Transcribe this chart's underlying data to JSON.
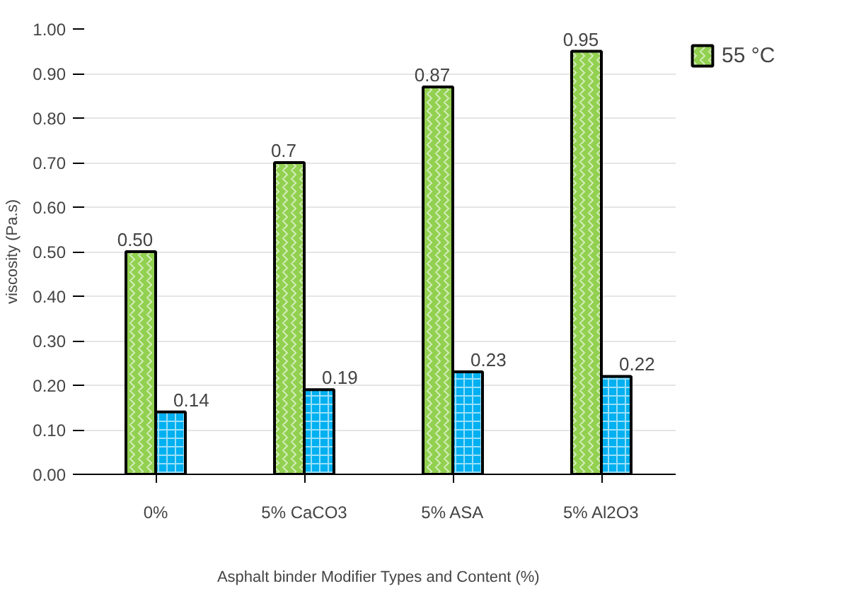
{
  "chart_data": {
    "type": "bar",
    "xlabel": "Asphalt binder Modifier Types and Content (%)",
    "ylabel": "viscosity (Pa.s)",
    "categories": [
      "0%",
      "5% CaCO3",
      "5% ASA",
      "5% Al2O3"
    ],
    "series": [
      {
        "name": "55 °C",
        "color": "#92d050",
        "values": [
          0.5,
          0.7,
          0.87,
          0.95
        ],
        "value_labels": [
          "0.50",
          "0.7",
          "0.87",
          "0.95"
        ]
      },
      {
        "color": "#00b0f0",
        "values": [
          0.14,
          0.19,
          0.23,
          0.22
        ],
        "value_labels": [
          "0.14",
          "0.19",
          "0.23",
          "0.22"
        ]
      }
    ],
    "ylim": [
      0,
      1
    ],
    "yticks": [
      {
        "value": 0,
        "label": "0.00"
      },
      {
        "value": 0.1,
        "label": "0.10"
      },
      {
        "value": 0.2,
        "label": "0.20"
      },
      {
        "value": 0.3,
        "label": "0.30"
      },
      {
        "value": 0.4,
        "label": "0.40"
      },
      {
        "value": 0.5,
        "label": "0.50"
      },
      {
        "value": 0.6,
        "label": "0.60"
      },
      {
        "value": 0.7,
        "label": "0.70"
      },
      {
        "value": 0.8,
        "label": "0.80"
      },
      {
        "value": 0.9,
        "label": "0.90"
      },
      {
        "value": 1,
        "label": "1.00"
      }
    ],
    "grid": "y",
    "legend": "top right"
  }
}
